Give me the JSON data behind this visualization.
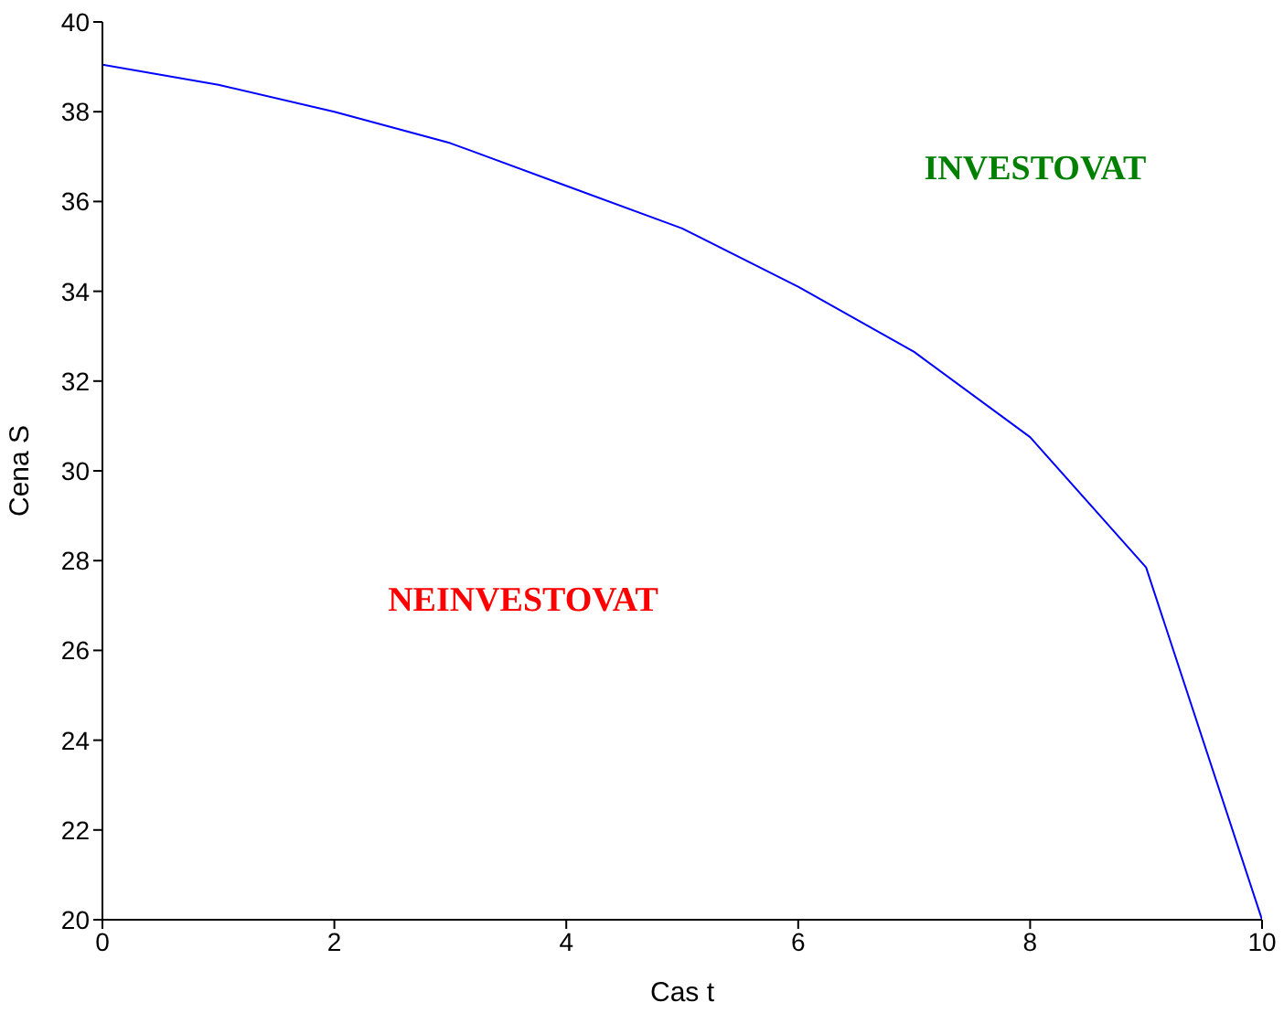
{
  "chart_data": {
    "type": "line",
    "xlabel": "Cas t",
    "ylabel": "Cena S",
    "x": [
      0,
      1,
      2,
      3,
      4,
      5,
      6,
      7,
      8,
      9,
      10
    ],
    "series": [
      {
        "color": "#0000ff",
        "values": [
          39.05,
          38.6,
          38.0,
          37.3,
          36.35,
          35.4,
          34.1,
          32.65,
          30.75,
          27.85,
          20.0
        ]
      }
    ],
    "xlim": [
      0,
      10
    ],
    "xticks": [
      0,
      2,
      4,
      6,
      8,
      10
    ],
    "ylim": [
      20,
      40
    ],
    "yticks": [
      20,
      22,
      24,
      26,
      28,
      30,
      32,
      34,
      36,
      38,
      40
    ],
    "grid": false,
    "legend": false,
    "marker": "none",
    "line_style": "solid",
    "annotations": [
      "INVESTOVAT",
      "NEINVESTOVAT"
    ]
  }
}
